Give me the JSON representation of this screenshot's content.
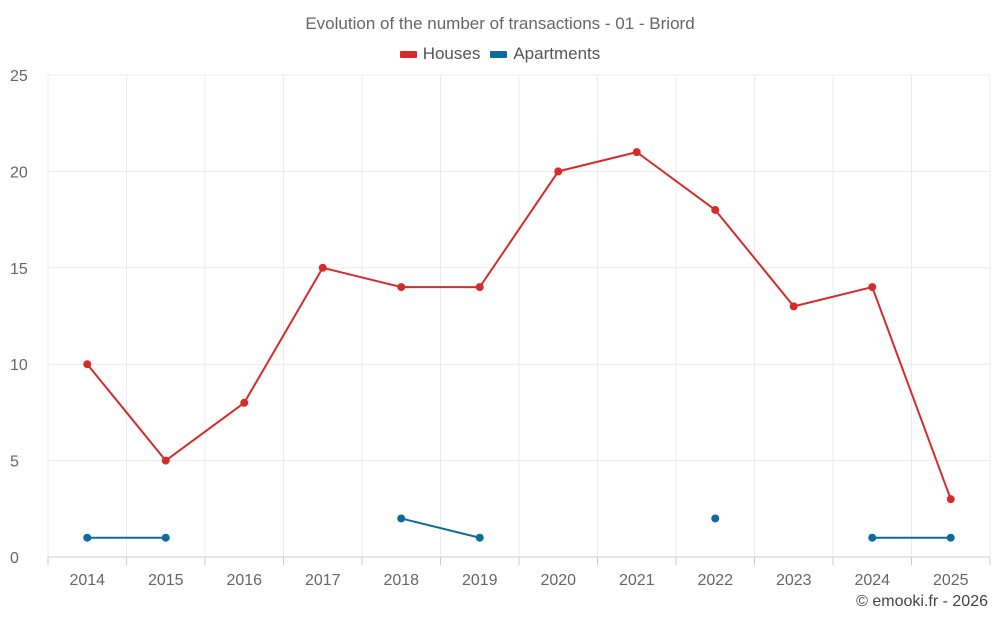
{
  "chart_data": {
    "type": "line",
    "title": "Evolution of the number of transactions - 01 - Briord",
    "categories": [
      "2014",
      "2015",
      "2016",
      "2017",
      "2018",
      "2019",
      "2020",
      "2021",
      "2022",
      "2023",
      "2024",
      "2025"
    ],
    "series": [
      {
        "name": "Houses",
        "color": "#d62b2b",
        "values": [
          10,
          5,
          8,
          15,
          14,
          14,
          20,
          21,
          18,
          13,
          14,
          3
        ]
      },
      {
        "name": "Apartments",
        "color": "#0f6aa0",
        "values": [
          1,
          1,
          null,
          null,
          2,
          1,
          null,
          null,
          2,
          null,
          1,
          1
        ]
      }
    ],
    "ylim": [
      0,
      25
    ],
    "yticks": [
      0,
      5,
      10,
      15,
      20,
      25
    ],
    "grid": true,
    "legend_position": "top-center"
  },
  "credit": "© emooki.fr - 2026"
}
